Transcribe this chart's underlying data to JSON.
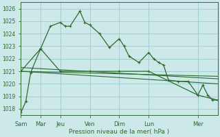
{
  "background_color": "#cce8e8",
  "grid_color": "#99cccc",
  "line_color": "#2d6a2d",
  "xlabel": "Pression niveau de la mer( hPa )",
  "ylim": [
    1017.5,
    1026.5
  ],
  "yticks": [
    1018,
    1019,
    1020,
    1021,
    1022,
    1023,
    1024,
    1025,
    1026
  ],
  "xtick_labels": [
    "Sam",
    "Mar",
    "Jeu",
    "Ven",
    "Dim",
    "Lun",
    "Mer"
  ],
  "xtick_positions": [
    0,
    24,
    48,
    84,
    120,
    156,
    216
  ],
  "xlim": [
    0,
    240
  ],
  "series1_detailed": {
    "x": [
      0,
      6,
      12,
      24,
      36,
      48,
      54,
      60,
      72,
      78,
      84,
      96,
      108,
      120,
      126,
      132,
      144,
      156,
      162,
      168,
      174,
      180,
      192,
      204,
      216,
      222,
      228,
      234,
      240
    ],
    "y": [
      1017.7,
      1018.6,
      1020.9,
      1022.8,
      1024.6,
      1024.9,
      1024.6,
      1024.6,
      1025.8,
      1024.9,
      1024.7,
      1024.0,
      1022.9,
      1023.6,
      1023.0,
      1022.2,
      1021.7,
      1022.5,
      1022.0,
      1021.7,
      1021.5,
      1020.3,
      1020.2,
      1020.2,
      1019.1,
      1019.9,
      1019.1,
      1018.7,
      1018.7
    ]
  },
  "series2_smooth": {
    "x": [
      0,
      24,
      48,
      84,
      120,
      156,
      216,
      240
    ],
    "y": [
      1021.0,
      1022.8,
      1021.0,
      1021.0,
      1021.0,
      1021.0,
      1019.1,
      1018.7
    ]
  },
  "trend1": {
    "x": [
      0,
      240
    ],
    "y": [
      1021.3,
      1020.4
    ]
  },
  "trend2": {
    "x": [
      0,
      240
    ],
    "y": [
      1021.0,
      1020.6
    ]
  },
  "trend3": {
    "x": [
      0,
      240
    ],
    "y": [
      1021.0,
      1020.0
    ]
  }
}
